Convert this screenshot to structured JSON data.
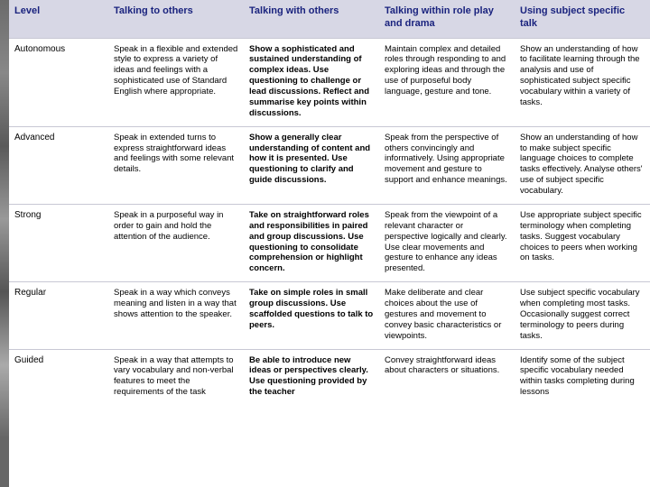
{
  "columns": [
    "Level",
    "Talking to others",
    "Talking with others",
    "Talking within role play and drama",
    "Using subject specific talk"
  ],
  "rows": [
    {
      "level": "Autonomous",
      "c1": "Speak in a flexible and extended style to express a variety of ideas and feelings with a sophisticated use of Standard English where appropriate.",
      "c2": "Show a sophisticated and sustained understanding of complex ideas. Use questioning to challenge or lead discussions. Reflect and summarise key points within discussions.",
      "c3": "Maintain complex and detailed roles through responding to and exploring ideas and through the use of purposeful body language, gesture and tone.",
      "c4": "Show an understanding of how to facilitate learning through the analysis and use of sophisticated subject specific vocabulary within a variety of tasks."
    },
    {
      "level": "Advanced",
      "c1": "Speak in extended turns to express straightforward ideas and feelings with some relevant details.",
      "c2": "Show a generally clear understanding of content and how it is presented. Use questioning to clarify and guide discussions.",
      "c3": "Speak from the perspective of others convincingly and informatively. Using appropriate movement and gesture to support and enhance meanings.",
      "c4": "Show an understanding of how to make subject specific language choices to complete tasks effectively. Analyse others' use of subject specific vocabulary."
    },
    {
      "level": "Strong",
      "c1": "Speak in a purposeful way in order to gain and hold the attention of the audience.",
      "c2": "Take on straightforward roles and responsibilities in paired and group discussions. Use questioning to consolidate comprehension or highlight concern.",
      "c3": "Speak from the viewpoint of a relevant character or perspective logically and clearly. Use clear movements and gesture to enhance any ideas presented.",
      "c4": "Use appropriate subject specific terminology when completing tasks. Suggest vocabulary choices to peers when working on tasks."
    },
    {
      "level": "Regular",
      "c1": "Speak in a way which conveys meaning and listen in a way that shows attention to the speaker.",
      "c2": "Take on simple roles in small group discussions. Use scaffolded questions to talk to peers.",
      "c3": "Make deliberate and clear choices about the use of gestures and movement to convey basic characteristics or viewpoints.",
      "c4": "Use subject specific vocabulary when completing most tasks. Occasionally suggest correct terminology to peers during tasks."
    },
    {
      "level": "Guided",
      "c1": "Speak in a way that attempts to vary vocabulary and non-verbal features to meet the requirements of the task",
      "c2": "Be able to introduce new ideas or perspectives clearly. Use questioning provided by the teacher",
      "c3": "Convey straightforward ideas about characters or situations.",
      "c4": "Identify some of the subject specific vocabulary needed within tasks completing during lessons"
    }
  ]
}
